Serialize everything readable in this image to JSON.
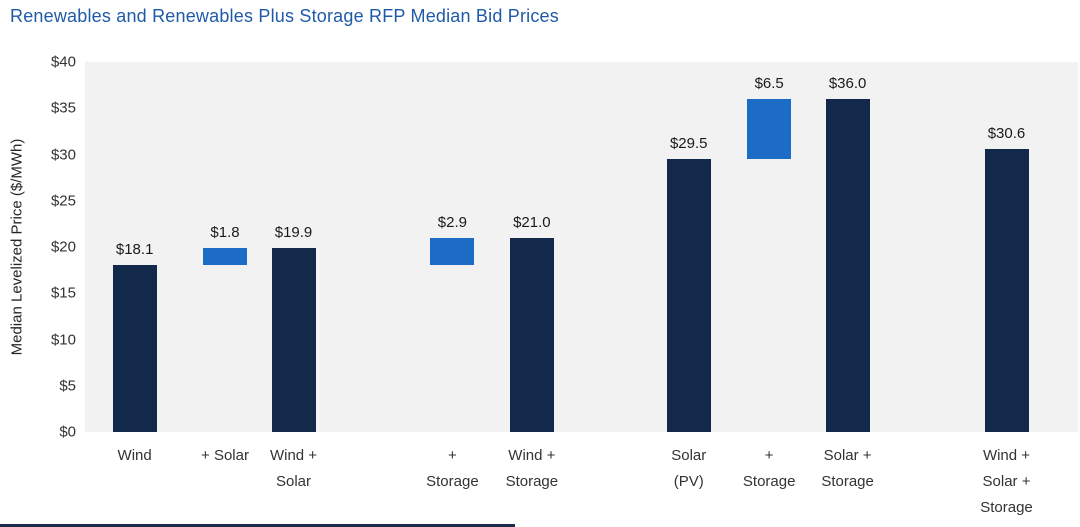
{
  "title": "Renewables and Renewables Plus Storage RFP Median Bid Prices",
  "chart_data": {
    "type": "bar",
    "title": "Renewables and Renewables Plus Storage RFP Median Bid Prices",
    "xlabel": "",
    "ylabel": "Median Levelized Price ($/MWh)",
    "ylim": [
      0,
      40
    ],
    "ytick_step": 5,
    "yticks": [
      "$0",
      "$5",
      "$10",
      "$15",
      "$20",
      "$25",
      "$30",
      "$35",
      "$40"
    ],
    "grid": false,
    "legend": "none",
    "plot_background": "#F2F2F2",
    "colors": {
      "navy": "#13294B",
      "blue": "#1C6BC4"
    },
    "bars": [
      {
        "label": "Wind",
        "label_lines": [
          "Wind"
        ],
        "value": 18.1,
        "base": 0,
        "display": "$18.1",
        "color": "navy",
        "x": 0.05
      },
      {
        "label": "+ Solar",
        "label_lines": [
          "+ Solar"
        ],
        "value": 1.8,
        "base": 18.1,
        "display": "$1.8",
        "color": "blue",
        "x": 0.141
      },
      {
        "label": "Wind + Solar",
        "label_lines": [
          "Wind +",
          "Solar"
        ],
        "value": 19.9,
        "base": 0,
        "display": "$19.9",
        "color": "navy",
        "x": 0.21
      },
      {
        "label": "+ Storage",
        "label_lines": [
          "+",
          "Storage"
        ],
        "value": 2.9,
        "base": 18.1,
        "display": "$2.9",
        "color": "blue",
        "x": 0.37
      },
      {
        "label": "Wind + Storage",
        "label_lines": [
          "Wind +",
          "Storage"
        ],
        "value": 21.0,
        "base": 0,
        "display": "$21.0",
        "color": "navy",
        "x": 0.45
      },
      {
        "label": "Solar (PV)",
        "label_lines": [
          "Solar",
          "(PV)"
        ],
        "value": 29.5,
        "base": 0,
        "display": "$29.5",
        "color": "navy",
        "x": 0.608
      },
      {
        "label": "+ Storage",
        "label_lines": [
          "+",
          "Storage"
        ],
        "value": 6.5,
        "base": 29.5,
        "display": "$6.5",
        "color": "blue",
        "x": 0.689
      },
      {
        "label": "Solar + Storage",
        "label_lines": [
          "Solar +",
          "Storage"
        ],
        "value": 36.0,
        "base": 0,
        "display": "$36.0",
        "color": "navy",
        "x": 0.768
      },
      {
        "label": "Wind + Solar + Storage",
        "label_lines": [
          "Wind +",
          "Solar +",
          "Storage"
        ],
        "value": 30.6,
        "base": 0,
        "display": "$30.6",
        "color": "navy",
        "x": 0.928
      }
    ]
  }
}
